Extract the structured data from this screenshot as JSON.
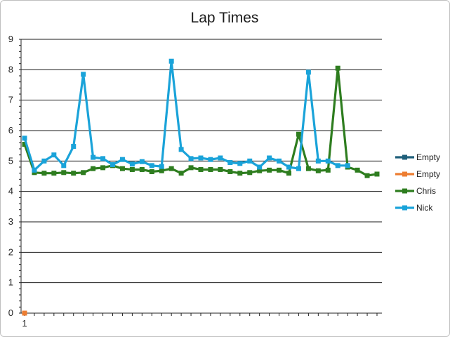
{
  "chart_data": {
    "type": "line",
    "title": "Lap Times",
    "xlabel": "",
    "ylabel": "",
    "ylim": [
      0,
      9
    ],
    "yticks": [
      0,
      1,
      2,
      3,
      4,
      5,
      6,
      7,
      8,
      9
    ],
    "xlim": [
      1,
      37
    ],
    "xtick_labels": [
      "1"
    ],
    "grid": true,
    "legend_position": "right",
    "series": [
      {
        "name": "Empty",
        "color": "#1f5f7a",
        "x": [],
        "values": []
      },
      {
        "name": "Empty",
        "color": "#ed7d31",
        "x": [
          1
        ],
        "values": [
          0
        ]
      },
      {
        "name": "Chris",
        "color": "#2e7d1f",
        "x": [
          1,
          2,
          3,
          4,
          5,
          6,
          7,
          8,
          9,
          10,
          11,
          12,
          13,
          14,
          15,
          16,
          17,
          18,
          19,
          20,
          21,
          22,
          23,
          24,
          25,
          26,
          27,
          28,
          29,
          30,
          31,
          32,
          33,
          34,
          35,
          36,
          37
        ],
        "values": [
          5.55,
          4.62,
          4.6,
          4.6,
          4.62,
          4.6,
          4.62,
          4.75,
          4.78,
          4.85,
          4.75,
          4.72,
          4.72,
          4.65,
          4.68,
          4.75,
          4.6,
          4.78,
          4.72,
          4.72,
          4.72,
          4.65,
          4.6,
          4.62,
          4.68,
          4.7,
          4.7,
          4.6,
          5.88,
          4.75,
          4.68,
          4.7,
          8.05,
          4.8,
          4.7,
          4.52,
          4.57
        ]
      },
      {
        "name": "Nick",
        "color": "#1aa3d9",
        "x": [
          1,
          2,
          3,
          4,
          5,
          6,
          7,
          8,
          9,
          10,
          11,
          12,
          13,
          14,
          15,
          16,
          17,
          18,
          19,
          20,
          21,
          22,
          23,
          24,
          25,
          26,
          27,
          28,
          29,
          30,
          31,
          32,
          33,
          34
        ],
        "values": [
          5.75,
          4.7,
          5.0,
          5.2,
          4.85,
          5.48,
          7.85,
          5.12,
          5.08,
          4.88,
          5.05,
          4.9,
          4.98,
          4.85,
          4.82,
          8.28,
          5.38,
          5.08,
          5.1,
          5.05,
          5.1,
          4.95,
          4.92,
          5.0,
          4.8,
          5.1,
          5.0,
          4.8,
          4.75,
          7.92,
          5.0,
          5.0,
          4.85,
          4.85
        ]
      }
    ]
  }
}
